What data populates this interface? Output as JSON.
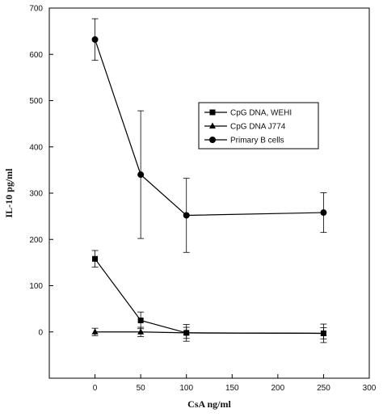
{
  "chart_data": {
    "type": "line",
    "title": "",
    "xlabel": "CsA ng/ml",
    "ylabel": "IL-10 pg/ml",
    "xlim": [
      -50,
      300
    ],
    "ylim": [
      -100,
      700
    ],
    "xticks": [
      0,
      50,
      100,
      150,
      200,
      250,
      300
    ],
    "yticks": [
      0,
      100,
      200,
      300,
      400,
      500,
      600,
      700
    ],
    "grid": false,
    "legend_position": "right",
    "series": [
      {
        "name": "CpG DNA, WEHI",
        "marker": "square",
        "x": [
          0,
          50,
          100,
          250
        ],
        "y": [
          158,
          25,
          -2,
          -3
        ],
        "err": [
          18,
          18,
          18,
          20
        ]
      },
      {
        "name": "CpG DNA J774",
        "marker": "triangle",
        "x": [
          0,
          50,
          100,
          250
        ],
        "y": [
          0,
          0,
          -2,
          -3
        ],
        "err": [
          8,
          10,
          12,
          12
        ]
      },
      {
        "name": "Primary B cells",
        "marker": "circle",
        "x": [
          0,
          50,
          100,
          250
        ],
        "y": [
          632,
          340,
          252,
          258
        ],
        "err": [
          45,
          138,
          80,
          43
        ]
      }
    ]
  }
}
